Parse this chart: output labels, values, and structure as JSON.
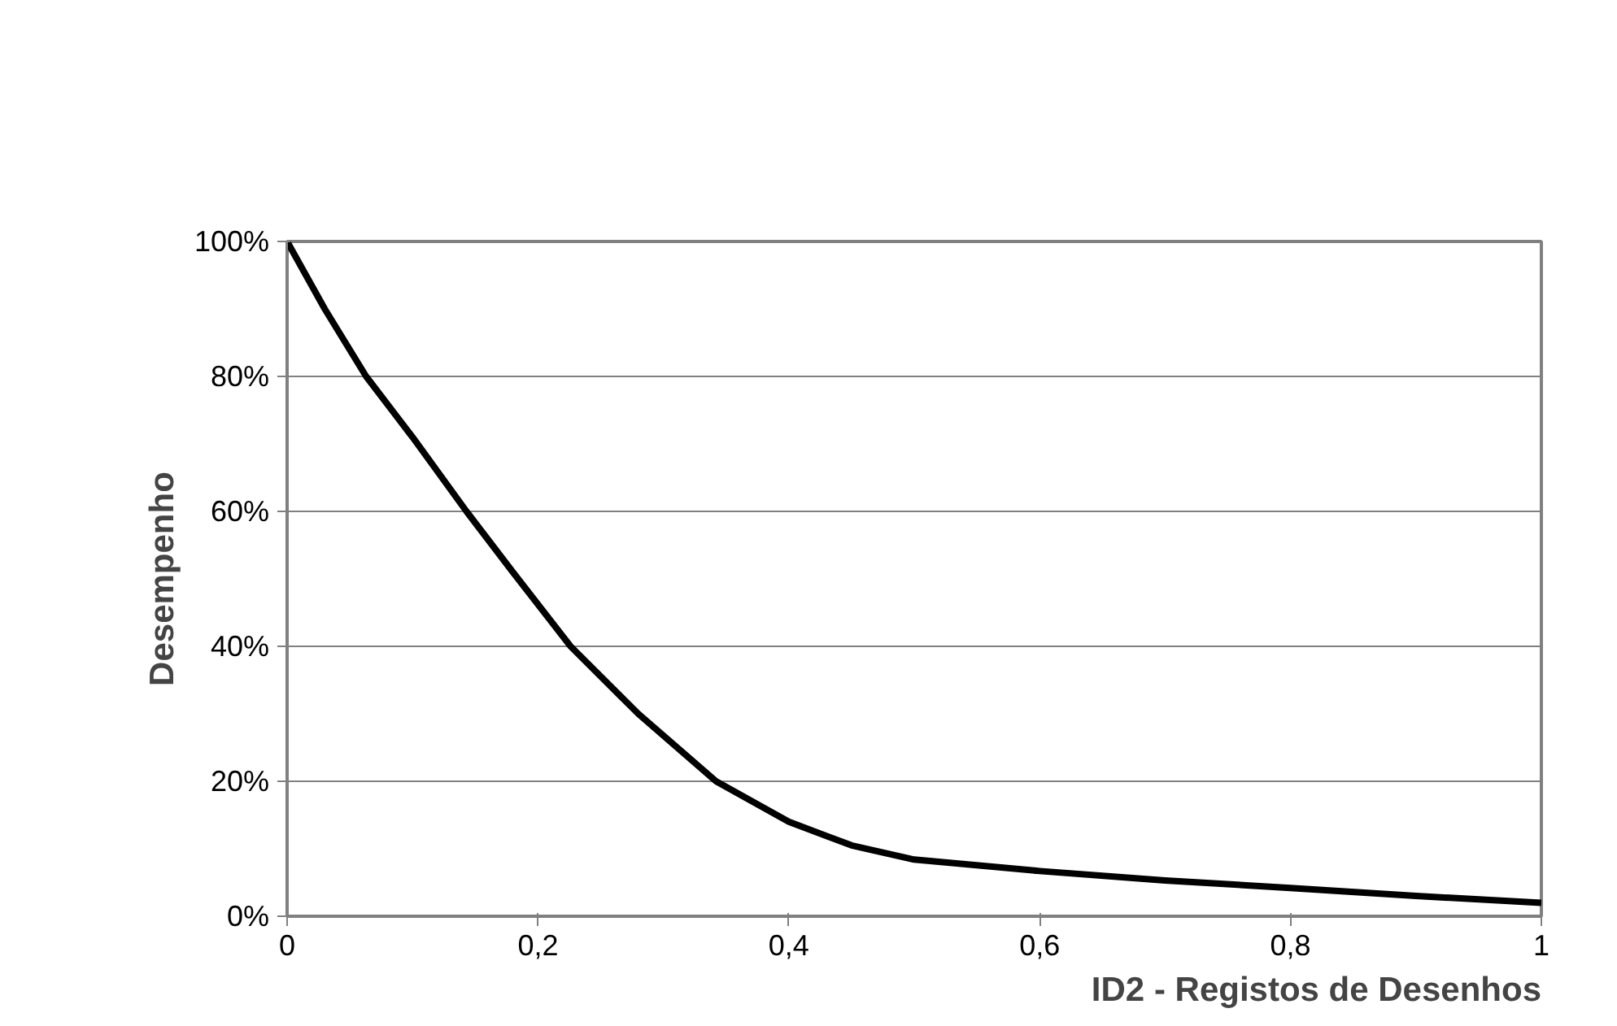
{
  "chart_data": {
    "type": "line",
    "xlabel": "ID2 - Registos de Desenhos",
    "ylabel": "Desempenho",
    "x": [
      0,
      0.03,
      0.063,
      0.1,
      0.143,
      0.18,
      0.226,
      0.28,
      0.342,
      0.4,
      0.45,
      0.5,
      0.6,
      0.7,
      0.8,
      0.9,
      1
    ],
    "series": [
      {
        "color": "#000000",
        "values": [
          1.0,
          0.9,
          0.8,
          0.71,
          0.6,
          0.51,
          0.4,
          0.3,
          0.2,
          0.14,
          0.105,
          0.084,
          0.067,
          0.053,
          0.042,
          0.03,
          0.02
        ]
      }
    ],
    "xlim": [
      0,
      1
    ],
    "ylim": [
      0,
      1
    ],
    "xticks": [
      0,
      {
        "value": 0.2,
        "label": "0,2"
      },
      {
        "value": 0.4,
        "label": "0,4"
      },
      {
        "value": 0.6,
        "label": "0,6"
      },
      {
        "value": 0.8,
        "label": "0,8"
      },
      1
    ],
    "yticks": [
      {
        "value": 0,
        "label": "0%"
      },
      {
        "value": 0.2,
        "label": "20%"
      },
      {
        "value": 0.4,
        "label": "40%"
      },
      {
        "value": 0.6,
        "label": "60%"
      },
      {
        "value": 0.8,
        "label": "80%"
      },
      {
        "value": 1,
        "label": "100%"
      }
    ],
    "grid": "y",
    "marker": "none",
    "line_style": "solid"
  }
}
